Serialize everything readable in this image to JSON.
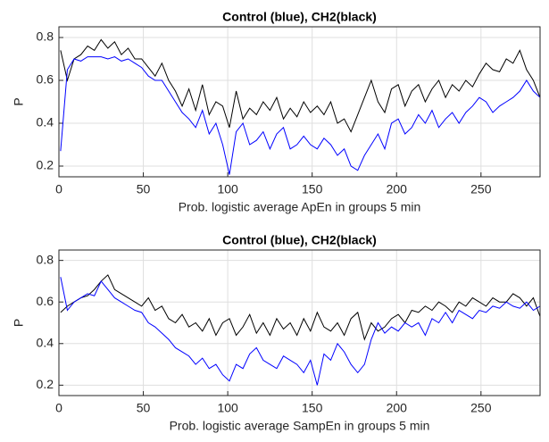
{
  "chart_data": [
    {
      "type": "line",
      "title": "Control (blue), CH2(black)",
      "xlabel": "Prob. logistic average ApEn in groups 5 min",
      "ylabel": "P",
      "xlim": [
        0,
        285
      ],
      "xticks": [
        0,
        50,
        100,
        150,
        200,
        250
      ],
      "ylim": [
        0.15,
        0.85
      ],
      "yticks": [
        0.2,
        0.4,
        0.6,
        0.8
      ],
      "grid": true,
      "x": [
        1,
        5,
        9,
        13,
        17,
        21,
        25,
        29,
        33,
        37,
        41,
        45,
        49,
        53,
        57,
        61,
        65,
        69,
        73,
        77,
        81,
        85,
        89,
        93,
        97,
        101,
        105,
        109,
        113,
        117,
        121,
        125,
        129,
        133,
        137,
        141,
        145,
        149,
        153,
        157,
        161,
        165,
        169,
        173,
        177,
        181,
        185,
        189,
        193,
        197,
        201,
        205,
        209,
        213,
        217,
        221,
        225,
        229,
        233,
        237,
        241,
        245,
        249,
        253,
        257,
        261,
        265,
        269,
        273,
        277,
        281,
        285
      ],
      "series": [
        {
          "color": "#000000",
          "values": [
            0.74,
            0.6,
            0.7,
            0.72,
            0.76,
            0.74,
            0.79,
            0.75,
            0.78,
            0.72,
            0.75,
            0.7,
            0.7,
            0.66,
            0.62,
            0.68,
            0.6,
            0.55,
            0.48,
            0.56,
            0.46,
            0.58,
            0.44,
            0.5,
            0.48,
            0.38,
            0.55,
            0.42,
            0.47,
            0.44,
            0.5,
            0.46,
            0.52,
            0.42,
            0.47,
            0.43,
            0.5,
            0.45,
            0.48,
            0.44,
            0.5,
            0.4,
            0.42,
            0.36,
            0.44,
            0.52,
            0.6,
            0.5,
            0.45,
            0.56,
            0.58,
            0.48,
            0.55,
            0.58,
            0.5,
            0.56,
            0.6,
            0.52,
            0.58,
            0.55,
            0.6,
            0.57,
            0.63,
            0.68,
            0.65,
            0.64,
            0.7,
            0.68,
            0.74,
            0.65,
            0.6,
            0.52
          ]
        },
        {
          "color": "#0000ff",
          "values": [
            0.27,
            0.65,
            0.7,
            0.69,
            0.71,
            0.71,
            0.71,
            0.7,
            0.71,
            0.69,
            0.7,
            0.68,
            0.66,
            0.62,
            0.6,
            0.6,
            0.55,
            0.5,
            0.45,
            0.42,
            0.38,
            0.46,
            0.35,
            0.4,
            0.3,
            0.16,
            0.36,
            0.4,
            0.3,
            0.32,
            0.36,
            0.28,
            0.35,
            0.38,
            0.28,
            0.3,
            0.34,
            0.3,
            0.28,
            0.33,
            0.3,
            0.25,
            0.28,
            0.2,
            0.18,
            0.25,
            0.3,
            0.35,
            0.28,
            0.4,
            0.42,
            0.35,
            0.38,
            0.44,
            0.4,
            0.46,
            0.38,
            0.42,
            0.45,
            0.4,
            0.45,
            0.48,
            0.52,
            0.5,
            0.45,
            0.48,
            0.5,
            0.52,
            0.55,
            0.6,
            0.55,
            0.52
          ]
        }
      ]
    },
    {
      "type": "line",
      "title": "Control (blue), CH2(black)",
      "xlabel": "Prob. logistic average SampEn in groups 5 min",
      "ylabel": "P",
      "xlim": [
        0,
        285
      ],
      "xticks": [
        0,
        50,
        100,
        150,
        200,
        250
      ],
      "ylim": [
        0.15,
        0.85
      ],
      "yticks": [
        0.2,
        0.4,
        0.6,
        0.8
      ],
      "grid": true,
      "x": [
        1,
        5,
        9,
        13,
        17,
        21,
        25,
        29,
        33,
        37,
        41,
        45,
        49,
        53,
        57,
        61,
        65,
        69,
        73,
        77,
        81,
        85,
        89,
        93,
        97,
        101,
        105,
        109,
        113,
        117,
        121,
        125,
        129,
        133,
        137,
        141,
        145,
        149,
        153,
        157,
        161,
        165,
        169,
        173,
        177,
        181,
        185,
        189,
        193,
        197,
        201,
        205,
        209,
        213,
        217,
        221,
        225,
        229,
        233,
        237,
        241,
        245,
        249,
        253,
        257,
        261,
        265,
        269,
        273,
        277,
        281,
        285
      ],
      "series": [
        {
          "color": "#000000",
          "values": [
            0.55,
            0.58,
            0.6,
            0.62,
            0.63,
            0.66,
            0.7,
            0.73,
            0.66,
            0.64,
            0.62,
            0.6,
            0.58,
            0.62,
            0.56,
            0.58,
            0.52,
            0.5,
            0.54,
            0.48,
            0.5,
            0.46,
            0.52,
            0.44,
            0.5,
            0.52,
            0.44,
            0.48,
            0.54,
            0.45,
            0.5,
            0.44,
            0.52,
            0.47,
            0.5,
            0.44,
            0.52,
            0.46,
            0.55,
            0.48,
            0.46,
            0.5,
            0.44,
            0.52,
            0.55,
            0.42,
            0.5,
            0.46,
            0.48,
            0.52,
            0.54,
            0.5,
            0.56,
            0.55,
            0.58,
            0.56,
            0.6,
            0.58,
            0.55,
            0.6,
            0.58,
            0.62,
            0.6,
            0.58,
            0.62,
            0.6,
            0.6,
            0.64,
            0.62,
            0.58,
            0.62,
            0.53
          ]
        },
        {
          "color": "#0000ff",
          "values": [
            0.72,
            0.56,
            0.6,
            0.62,
            0.64,
            0.63,
            0.7,
            0.66,
            0.62,
            0.6,
            0.58,
            0.56,
            0.55,
            0.5,
            0.48,
            0.45,
            0.42,
            0.38,
            0.36,
            0.34,
            0.3,
            0.33,
            0.28,
            0.3,
            0.25,
            0.22,
            0.3,
            0.28,
            0.35,
            0.38,
            0.32,
            0.3,
            0.28,
            0.34,
            0.32,
            0.3,
            0.26,
            0.32,
            0.2,
            0.35,
            0.32,
            0.4,
            0.36,
            0.3,
            0.26,
            0.3,
            0.42,
            0.5,
            0.45,
            0.48,
            0.46,
            0.5,
            0.48,
            0.5,
            0.44,
            0.52,
            0.5,
            0.55,
            0.5,
            0.56,
            0.54,
            0.52,
            0.56,
            0.55,
            0.58,
            0.57,
            0.6,
            0.58,
            0.57,
            0.6,
            0.56,
            0.58
          ]
        }
      ]
    }
  ]
}
